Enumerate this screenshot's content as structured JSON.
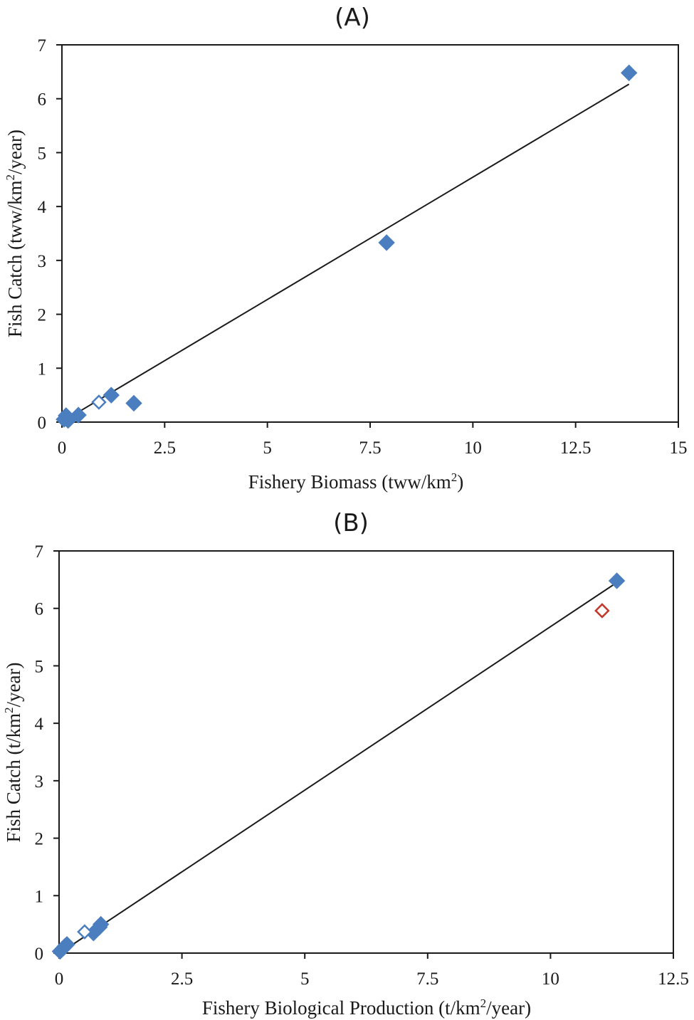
{
  "chart_data": [
    {
      "type": "scatter",
      "title": "(A)",
      "xlabel": "Fishery Biomass (tww/km²)",
      "xlabel_main": "Fishery Biomass (tww/km",
      "xlabel_sup": "2",
      "xlabel_tail": ")",
      "ylabel": "Fish Catch (tww/km²/year)",
      "ylabel_main": "Fish Catch (tww/km",
      "ylabel_sup": "2",
      "ylabel_tail": "/year)",
      "xlim": [
        0,
        15
      ],
      "ylim": [
        0,
        7
      ],
      "x_ticks": [
        0,
        2.5,
        5,
        7.5,
        10,
        12.5,
        15
      ],
      "x_tick_labels": [
        "0",
        "2.5",
        "5",
        "7.5",
        "10",
        "12.5",
        "15"
      ],
      "y_ticks": [
        0,
        1,
        2,
        3,
        4,
        5,
        6,
        7
      ],
      "y_tick_labels": [
        "0",
        "1",
        "2",
        "3",
        "4",
        "5",
        "6",
        "7"
      ],
      "grid": false,
      "legend": "none",
      "series": [
        {
          "marker": "filled-diamond",
          "color": "#4a7ebf",
          "points": [
            {
              "x": 0.05,
              "y": 0.05
            },
            {
              "x": 0.1,
              "y": 0.12
            },
            {
              "x": 0.15,
              "y": 0.03
            },
            {
              "x": 0.4,
              "y": 0.13
            },
            {
              "x": 1.2,
              "y": 0.5
            },
            {
              "x": 1.75,
              "y": 0.35
            },
            {
              "x": 7.9,
              "y": 3.33
            },
            {
              "x": 13.8,
              "y": 6.48
            }
          ]
        },
        {
          "marker": "open-diamond",
          "color": "#4a7ebf",
          "points": [
            {
              "x": 0.9,
              "y": 0.37
            }
          ]
        }
      ],
      "fit_line": {
        "x": [
          0.1,
          13.8
        ],
        "y": [
          0.05,
          6.27
        ],
        "color": "#1a1a1a"
      }
    },
    {
      "type": "scatter",
      "title": "(B)",
      "xlabel": "Fishery Biological Production (t/km²/year)",
      "xlabel_main": "Fishery Biological Production (t/km",
      "xlabel_sup": "2",
      "xlabel_tail": "/year)",
      "ylabel": "Fish Catch (t/km²/year)",
      "ylabel_main": "Fish Catch (t/km",
      "ylabel_sup": "2",
      "ylabel_tail": "/year)",
      "xlim": [
        0,
        12.5
      ],
      "ylim": [
        0,
        7
      ],
      "x_ticks": [
        0,
        2.5,
        5,
        7.5,
        10,
        12.5
      ],
      "x_tick_labels": [
        "0",
        "2.5",
        "5",
        "7.5",
        "10",
        "12.5"
      ],
      "y_ticks": [
        0,
        1,
        2,
        3,
        4,
        5,
        6,
        7
      ],
      "y_tick_labels": [
        "0",
        "1",
        "2",
        "3",
        "4",
        "5",
        "6",
        "7"
      ],
      "grid": false,
      "legend": "none",
      "series": [
        {
          "marker": "filled-diamond",
          "color": "#4a7ebf",
          "points": [
            {
              "x": 0.02,
              "y": 0.03
            },
            {
              "x": 0.08,
              "y": 0.08
            },
            {
              "x": 0.12,
              "y": 0.12
            },
            {
              "x": 0.16,
              "y": 0.15
            },
            {
              "x": 0.7,
              "y": 0.35
            },
            {
              "x": 0.82,
              "y": 0.45
            },
            {
              "x": 0.85,
              "y": 0.5
            },
            {
              "x": 11.35,
              "y": 6.48
            }
          ]
        },
        {
          "marker": "open-diamond",
          "color": "#4a7ebf",
          "points": [
            {
              "x": 0.52,
              "y": 0.37
            }
          ]
        },
        {
          "marker": "open-diamond",
          "color": "#c0392b",
          "points": [
            {
              "x": 11.05,
              "y": 5.96
            }
          ]
        }
      ],
      "fit_line": {
        "x": [
          0.05,
          11.35
        ],
        "y": [
          0.02,
          6.45
        ],
        "color": "#1a1a1a"
      }
    }
  ]
}
